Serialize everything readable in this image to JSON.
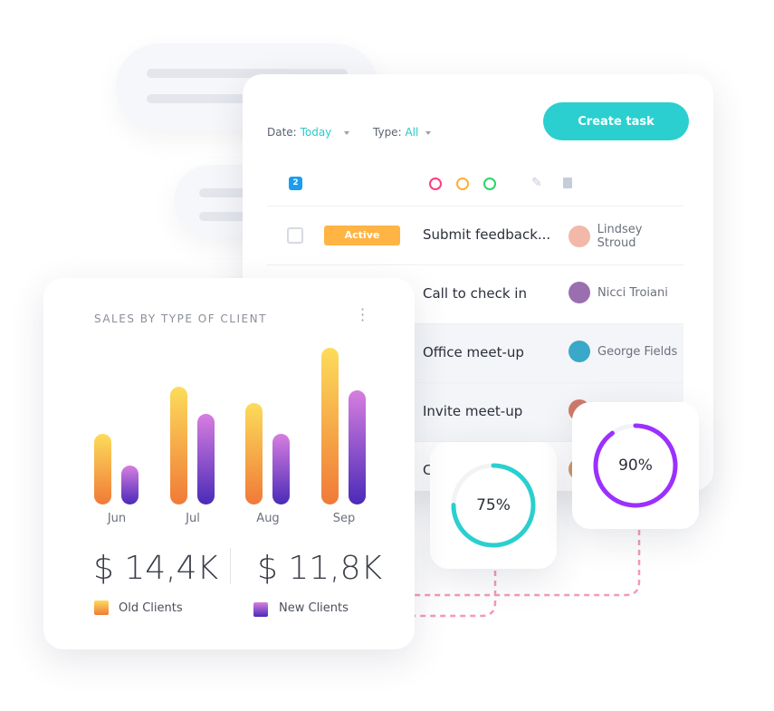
{
  "task_panel": {
    "date_label": "Date:",
    "date_value": "Today",
    "type_label": "Type:",
    "type_value": "All",
    "create_button": "Create task",
    "selected_count": "2",
    "status_colors": [
      "#ff3d7f",
      "#ffb030",
      "#2bd46a"
    ],
    "rows": [
      {
        "status": "Active",
        "task": "Submit feedback...",
        "person": "Lindsey Stroud",
        "avatar_color": "#f2b8a8"
      },
      {
        "task": "Call to check in",
        "person": "Nicci Troiani",
        "avatar_color": "#9a6fb0"
      },
      {
        "task": "Office meet-up",
        "person": "George Fields",
        "avatar_color": "#3aa8c8"
      },
      {
        "task": "Invite meet-up",
        "person": "",
        "avatar_color": "#d07a6a"
      },
      {
        "task": "C",
        "person": "",
        "avatar_color": "#d09a6a"
      }
    ]
  },
  "gauges": [
    {
      "label": "75%",
      "value": 75,
      "color": "#2bcfcf"
    },
    {
      "label": "90%",
      "value": 90,
      "color": "#9b30ff"
    }
  ],
  "chart_data": {
    "type": "bar",
    "title": "SALES BY TYPE OF CLIENT",
    "categories": [
      "Jun",
      "Jul",
      "Aug",
      "Sep"
    ],
    "series": [
      {
        "name": "Old Clients",
        "values": [
          45,
          75,
          65,
          100
        ]
      },
      {
        "name": "New Clients",
        "values": [
          25,
          58,
          45,
          73
        ]
      }
    ],
    "ylim": [
      0,
      100
    ],
    "grid": false,
    "legend": "bottom"
  },
  "sales": {
    "old_total": "$ 14,4K",
    "new_total": "$ 11,8K",
    "old_label": "Old Clients",
    "new_label": "New Clients"
  }
}
